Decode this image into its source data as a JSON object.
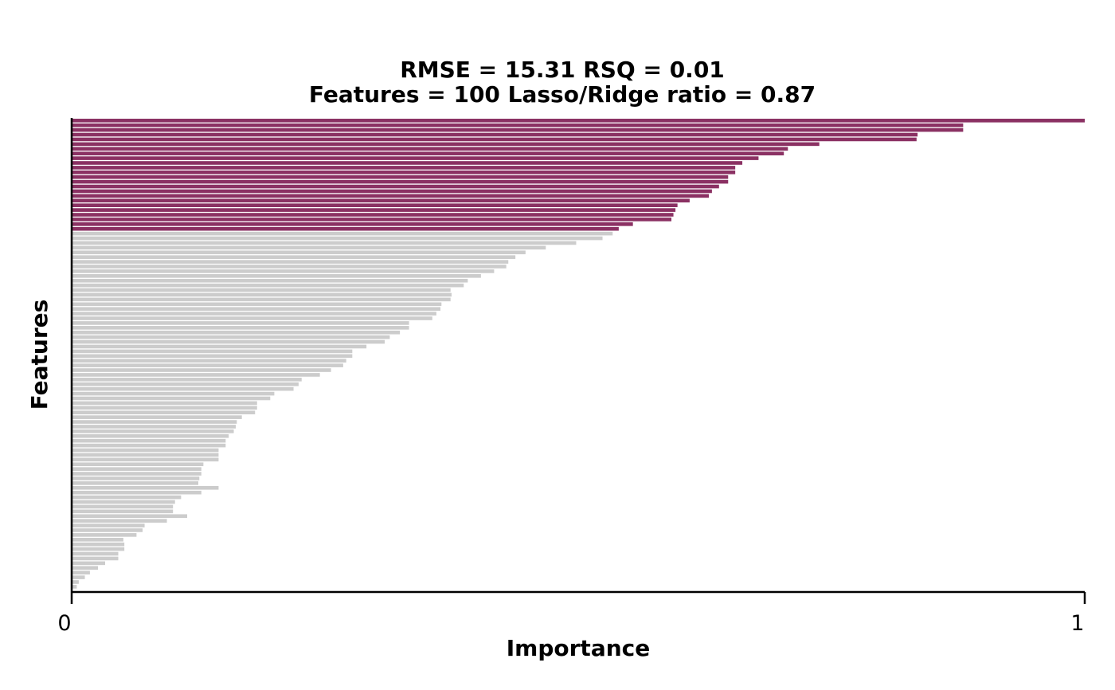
{
  "chart_data": {
    "type": "bar",
    "orientation": "horizontal",
    "title_line1": "RMSE = 15.31    RSQ = 0.01",
    "title_line2": "Features = 100    Lasso/Ridge ratio = 0.87",
    "xlabel": "Importance",
    "ylabel": "Features",
    "xlim": [
      0,
      1
    ],
    "x_ticks": [
      "0",
      "1"
    ],
    "grid": false,
    "legend": "none",
    "highlight_count": 24,
    "colors": {
      "highlight": "#8B3163",
      "other": "#CCCCCC",
      "axis": "#000000"
    },
    "values": [
      1.0,
      0.88,
      0.88,
      0.835,
      0.834,
      0.738,
      0.707,
      0.703,
      0.678,
      0.662,
      0.655,
      0.655,
      0.648,
      0.648,
      0.639,
      0.632,
      0.629,
      0.61,
      0.598,
      0.596,
      0.594,
      0.592,
      0.554,
      0.54,
      0.534,
      0.524,
      0.498,
      0.468,
      0.448,
      0.438,
      0.431,
      0.429,
      0.417,
      0.404,
      0.391,
      0.387,
      0.374,
      0.375,
      0.374,
      0.365,
      0.364,
      0.36,
      0.356,
      0.333,
      0.333,
      0.324,
      0.314,
      0.309,
      0.291,
      0.277,
      0.277,
      0.271,
      0.268,
      0.256,
      0.245,
      0.227,
      0.224,
      0.219,
      0.2,
      0.196,
      0.183,
      0.183,
      0.181,
      0.168,
      0.163,
      0.162,
      0.16,
      0.155,
      0.152,
      0.152,
      0.145,
      0.145,
      0.145,
      0.13,
      0.128,
      0.128,
      0.126,
      0.125,
      0.145,
      0.128,
      0.108,
      0.102,
      0.1,
      0.1,
      0.114,
      0.094,
      0.072,
      0.07,
      0.064,
      0.051,
      0.052,
      0.052,
      0.046,
      0.046,
      0.033,
      0.026,
      0.018,
      0.013,
      0.007,
      0.005
    ]
  }
}
